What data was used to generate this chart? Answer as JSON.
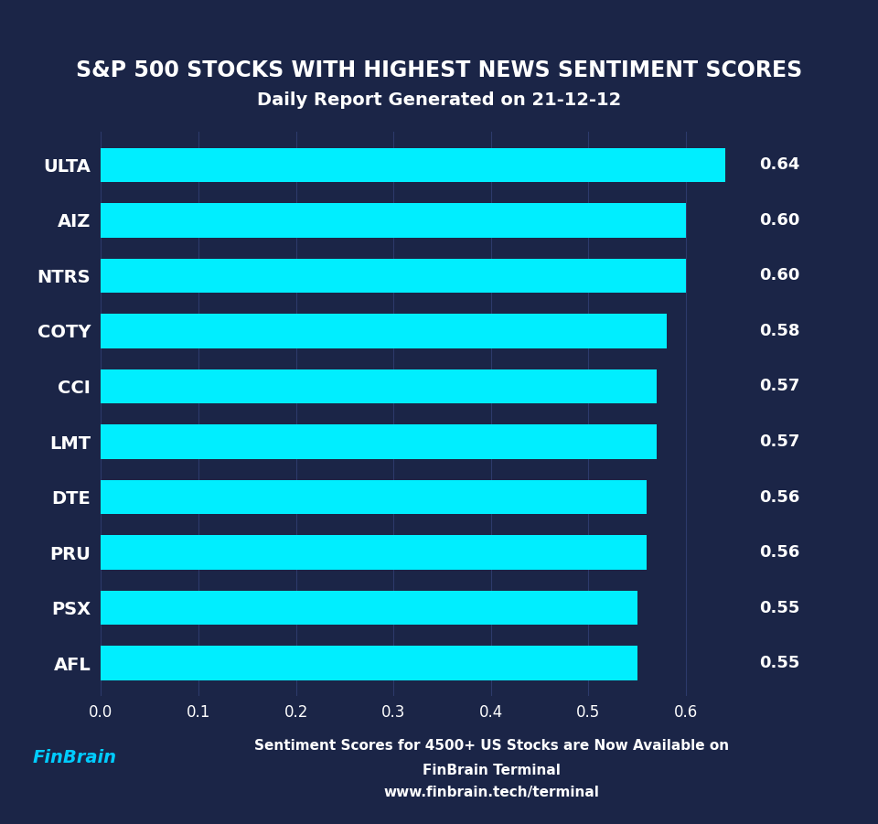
{
  "title_line1": "S&P 500 STOCKS WITH HIGHEST NEWS SENTIMENT SCORES",
  "title_line2": "Daily Report Generated on 21-12-12",
  "categories": [
    "ULTA",
    "AIZ",
    "NTRS",
    "COTY",
    "CCI",
    "LMT",
    "DTE",
    "PRU",
    "PSX",
    "AFL"
  ],
  "values": [
    0.64,
    0.6,
    0.6,
    0.58,
    0.57,
    0.57,
    0.56,
    0.56,
    0.55,
    0.55
  ],
  "bar_color": "#00EEFF",
  "background_color": "#1b2547",
  "title_color": "#FFFFFF",
  "subtitle_color": "#FFFFFF",
  "label_color": "#FFFFFF",
  "value_color": "#FFFFFF",
  "tick_color": "#FFFFFF",
  "grid_color": "#2d3a6b",
  "footer_text_line1": "Sentiment Scores for 4500+ US Stocks are Now Available on",
  "footer_text_line2": "FinBrain Terminal",
  "footer_text_line3": "www.finbrain.tech/terminal",
  "footer_text_color": "#FFFFFF",
  "finbrain_color": "#00CCFF",
  "xlim": [
    0.0,
    0.68
  ],
  "xlim_display": [
    0.0,
    0.6
  ],
  "xticks": [
    0.0,
    0.1,
    0.2,
    0.3,
    0.4,
    0.5,
    0.6
  ],
  "bar_height": 0.62,
  "title_fontsize": 17,
  "subtitle_fontsize": 14,
  "label_fontsize": 14,
  "value_fontsize": 13,
  "tick_fontsize": 12
}
